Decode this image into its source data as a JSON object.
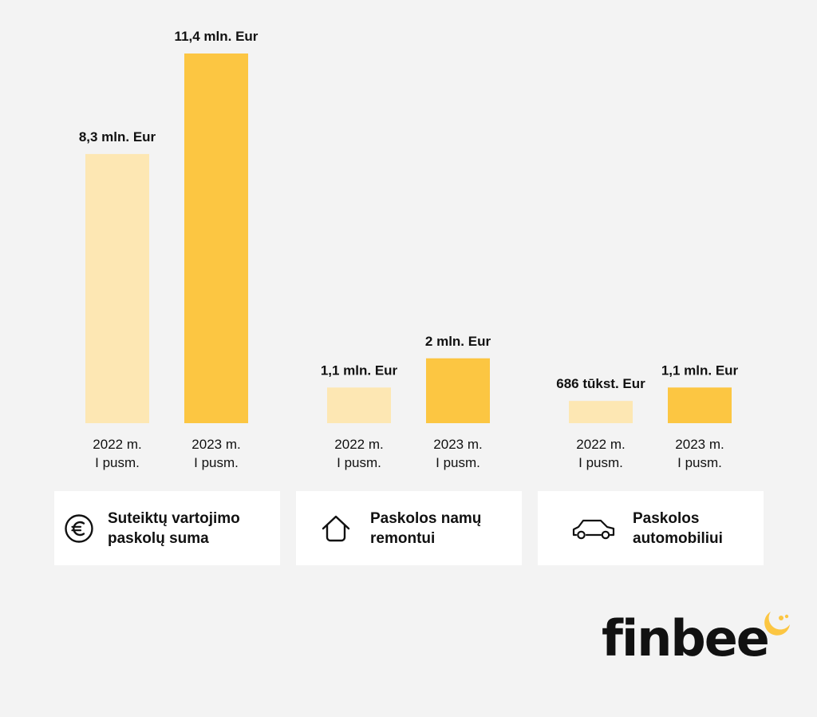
{
  "colors": {
    "background": "#f3f3f3",
    "bar_2022": "#fde7b3",
    "bar_2023": "#fcc642",
    "card": "#ffffff",
    "text": "#111111",
    "logo_accent": "#fcc642"
  },
  "chart_data": {
    "type": "bar",
    "value_unit": "mln. Eur",
    "series_periods": [
      "2022 m.\nI pusm.",
      "2023 m.\nI pusm."
    ],
    "groups": [
      {
        "category": "Suteiktų vartojimo\npaskolų suma",
        "icon": "euro-icon",
        "values": [
          8.3,
          11.4
        ],
        "data_labels": [
          "8,3 mln. Eur",
          "11,4 mln. Eur"
        ]
      },
      {
        "category": "Paskolos namų\nremontui",
        "icon": "house-icon",
        "values": [
          1.1,
          2.0
        ],
        "data_labels": [
          "1,1 mln. Eur",
          "2 mln. Eur"
        ]
      },
      {
        "category": "Paskolos\nautomobiliui",
        "icon": "car-icon",
        "values": [
          0.686,
          1.1
        ],
        "data_labels": [
          "686 tūkst. Eur",
          "1,1 mln. Eur"
        ]
      }
    ]
  },
  "brand": {
    "logo_text": "finbee",
    "logo_icon": "bee-swirl-icon"
  }
}
